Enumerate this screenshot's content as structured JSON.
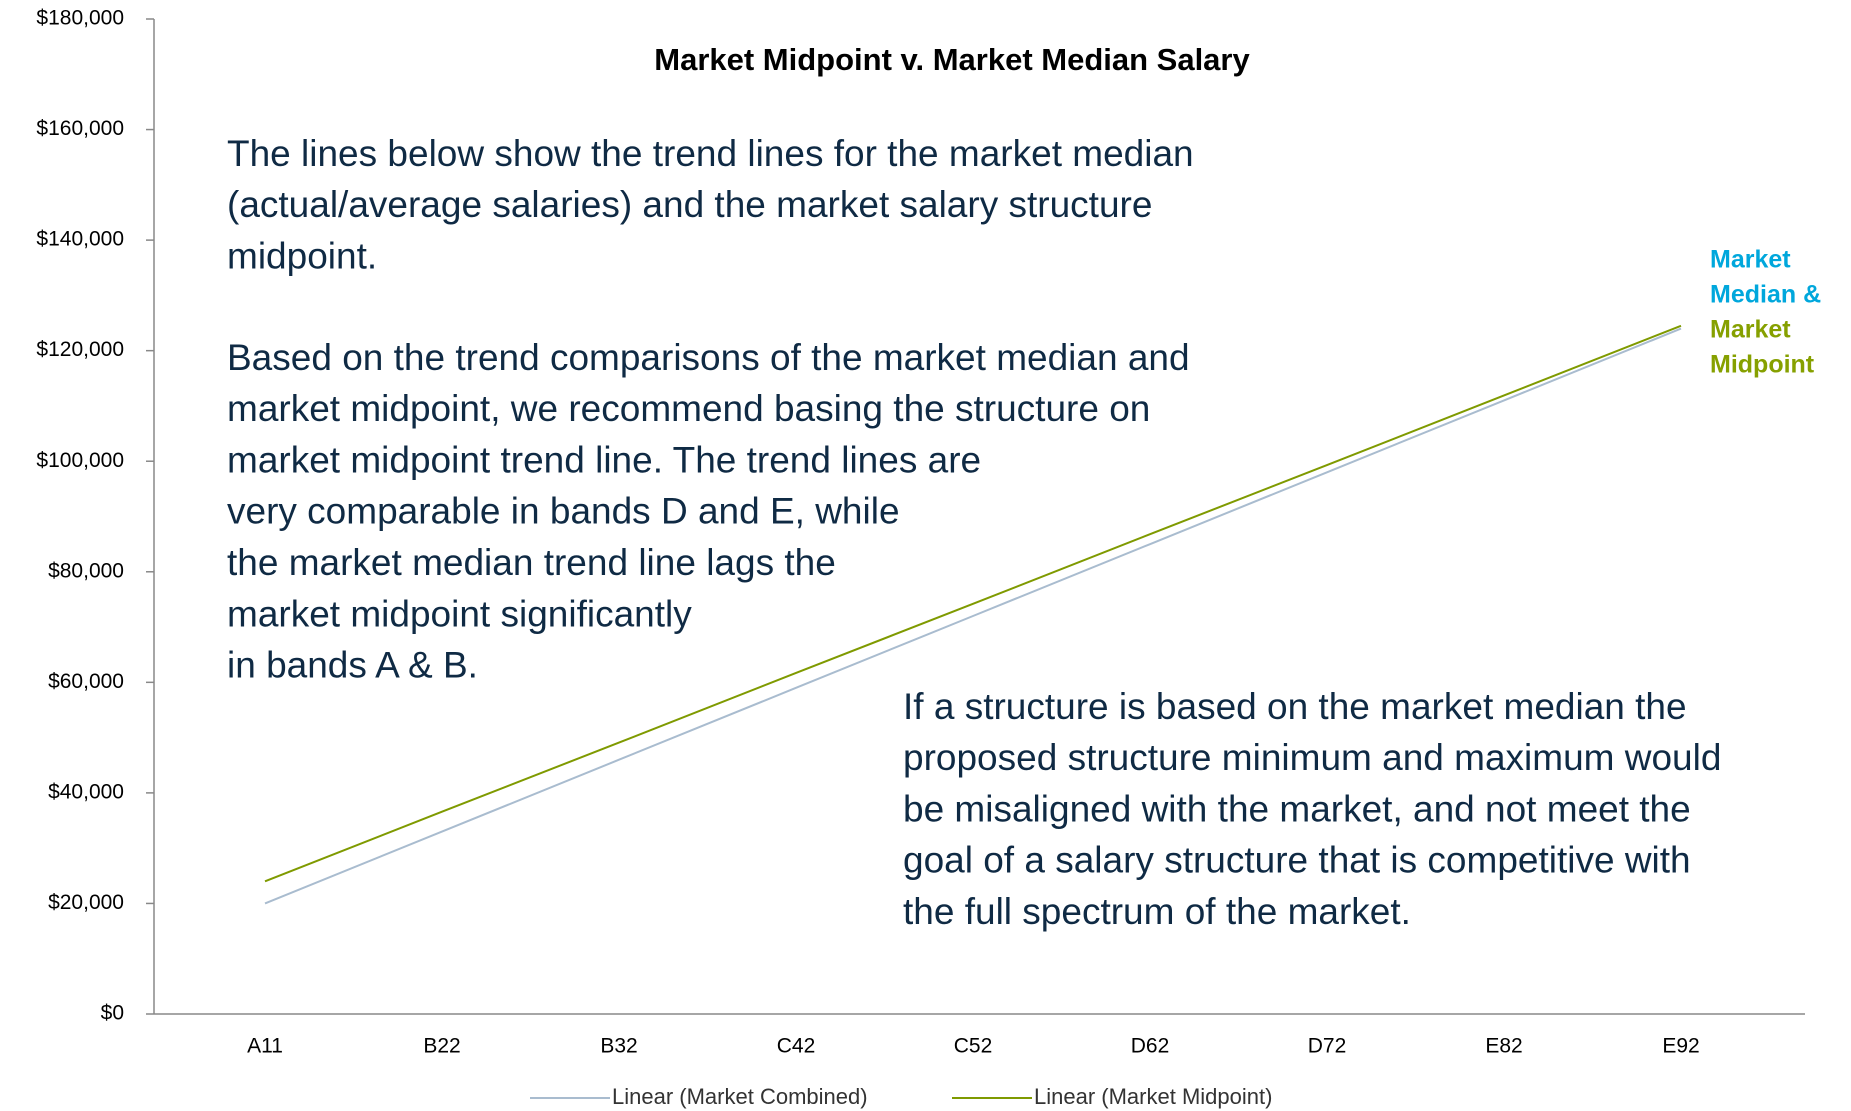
{
  "chart_data": {
    "type": "line",
    "title": "Market Midpoint v. Market Median Salary",
    "categories": [
      "A11",
      "B22",
      "B32",
      "C42",
      "C52",
      "D62",
      "D72",
      "E82",
      "E92"
    ],
    "series": [
      {
        "name": "Linear (Market Combined)",
        "color": "#a9bccf",
        "values": [
          20000,
          33000,
          46000,
          59000,
          72000,
          85000,
          98000,
          111000,
          124000
        ]
      },
      {
        "name": "Linear (Market Midpoint)",
        "color": "#7f9a00",
        "values": [
          24000,
          36600,
          49100,
          61700,
          74200,
          86800,
          99300,
          111900,
          124500
        ]
      }
    ],
    "ylim": [
      0,
      180000
    ],
    "yticks": [
      {
        "value": 0,
        "label": "$0"
      },
      {
        "value": 20000,
        "label": "$20,000"
      },
      {
        "value": 40000,
        "label": "$40,000"
      },
      {
        "value": 60000,
        "label": "$60,000"
      },
      {
        "value": 80000,
        "label": "$80,000"
      },
      {
        "value": 100000,
        "label": "$100,000"
      },
      {
        "value": 120000,
        "label": "$120,000"
      },
      {
        "value": 140000,
        "label": "$140,000"
      },
      {
        "value": 160000,
        "label": "$160,000"
      },
      {
        "value": 180000,
        "label": "$180,000"
      }
    ],
    "grid": false,
    "legend": "bottom",
    "annotations": [
      {
        "lines": [
          "The lines below show the trend lines for the market median",
          "(actual/average salaries) and the market salary structure",
          "midpoint."
        ]
      },
      {
        "lines": [
          "Based on the trend comparisons of the market median and",
          "market midpoint, we recommend basing the structure on",
          "market midpoint trend line.  The trend lines are",
          "very comparable in bands D and E, while",
          "the market median trend line lags the",
          "market midpoint significantly",
          "in bands A & B."
        ]
      },
      {
        "lines": [
          "If a structure is based on the market median the",
          "proposed structure minimum and maximum would",
          "be misaligned with the market, and not meet the",
          "goal of a salary structure that is competitive with",
          "the full spectrum of the market."
        ]
      }
    ],
    "end_label": {
      "lines": [
        "Market",
        "Median &",
        "Market",
        "Midpoint"
      ],
      "colors": [
        "#00a7dc",
        "#00a7dc",
        "#86a000",
        "#86a000"
      ]
    }
  }
}
